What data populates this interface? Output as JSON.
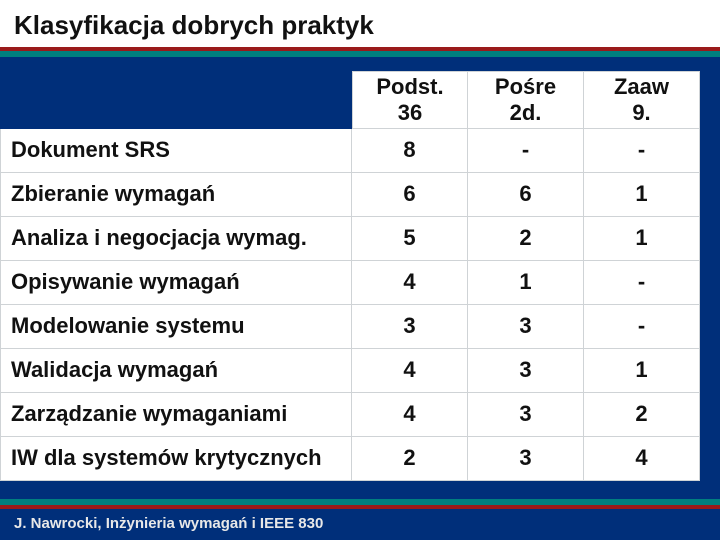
{
  "title": "Klasyfikacja dobrych praktyk",
  "title_fontsize": 26,
  "footer": "J. Nawrocki, Inżynieria wymagań i IEEE 830",
  "footer_fontsize": 15,
  "colors": {
    "stage_bg": "#002f7a",
    "rule_red": "#9a1a1a",
    "rule_teal": "#007f7f",
    "cell_bg": "#ffffff",
    "cell_border": "#cfd3d6",
    "text": "#111111",
    "footer_text": "#e8e8e8"
  },
  "cell_fontsize": 22,
  "header_fontsize": 22,
  "headers": [
    {
      "line1": "Podst.",
      "line2": "36"
    },
    {
      "line1": "Pośre",
      "line2": "2d."
    },
    {
      "line1": "Zaaw",
      "line2": "9."
    }
  ],
  "rows": [
    {
      "label": "Dokument SRS",
      "v1": "8",
      "v2": "-",
      "v3": "-"
    },
    {
      "label": "Zbieranie wymagań",
      "v1": "6",
      "v2": "6",
      "v3": "1"
    },
    {
      "label": "Analiza i negocjacja wymag.",
      "v1": "5",
      "v2": "2",
      "v3": "1"
    },
    {
      "label": "Opisywanie wymagań",
      "v1": "4",
      "v2": "1",
      "v3": "-"
    },
    {
      "label": "Modelowanie systemu",
      "v1": "3",
      "v2": "3",
      "v3": "-"
    },
    {
      "label": "Walidacja wymagań",
      "v1": "4",
      "v2": "3",
      "v3": "1"
    },
    {
      "label": "Zarządzanie wymaganiami",
      "v1": "4",
      "v2": "3",
      "v3": "2"
    },
    {
      "label": "IW dla systemów krytycznych",
      "v1": "2",
      "v2": "3",
      "v3": "4"
    }
  ]
}
